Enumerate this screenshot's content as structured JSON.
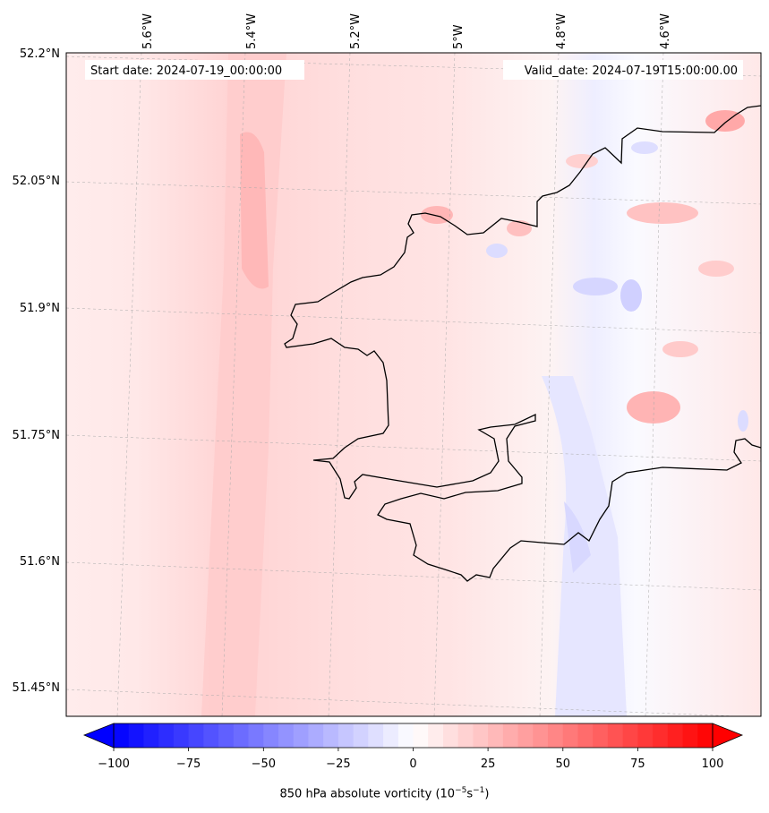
{
  "map": {
    "start_date": "Start date: 2024-07-19_00:00:00",
    "valid_date": "Valid_date: 2024-07-19T15:00:00.00",
    "lon_labels": [
      "5.6°W",
      "5.4°W",
      "5.2°W",
      "5°W",
      "4.8°W",
      "4.6°W"
    ],
    "lat_labels": [
      "52.2°N",
      "52.05°N",
      "51.9°N",
      "51.75°N",
      "51.6°N",
      "51.45°N"
    ]
  },
  "colorbar": {
    "ticks": [
      "−100",
      "−75",
      "−50",
      "−25",
      "0",
      "25",
      "50",
      "75",
      "100"
    ],
    "label_prefix": "850 hPa absolute vorticity (10",
    "label_exp1": "−5",
    "label_mid": "s",
    "label_exp2": "−1",
    "label_suffix": ")",
    "min": -100,
    "max": 100,
    "extend": "both",
    "colormap": "bwr",
    "colors": {
      "negative": "#0000ff",
      "zero": "#ffffff",
      "positive": "#ff0000"
    }
  }
}
